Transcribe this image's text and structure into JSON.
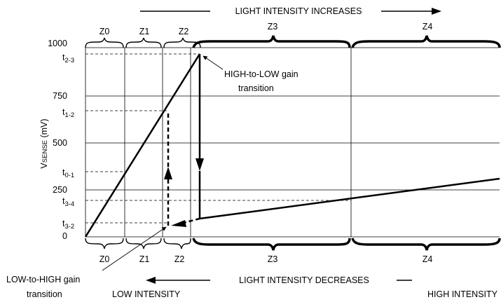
{
  "top_banner": "LIGHT INTENSITY INCREASES",
  "bottom_banner": "LIGHT INTENSITY DECREASES",
  "y_axis": {
    "main": "V",
    "sub": "SENSE",
    "unit": " (mV)"
  },
  "y_ticks": [
    "0",
    "250",
    "500",
    "750",
    "1000"
  ],
  "threshold_labels": [
    {
      "main": "t",
      "sub": "2-3"
    },
    {
      "main": "t",
      "sub": "1-2"
    },
    {
      "main": "t",
      "sub": "0-1"
    },
    {
      "main": "t",
      "sub": "3-4"
    },
    {
      "main": "t",
      "sub": "3-2"
    }
  ],
  "zones_top": [
    "Z0",
    "Z1",
    "Z2",
    "Z3",
    "Z4"
  ],
  "zones_bottom": [
    "Z0",
    "Z1",
    "Z2",
    "Z3",
    "Z4"
  ],
  "annotations": {
    "high_to_low_line1": "HIGH-to-LOW gain",
    "high_to_low_line2": "transition",
    "low_to_high_line1": "LOW-to-HIGH gain",
    "low_to_high_line2": "transition"
  },
  "low_intensity": "LOW  INTENSITY",
  "high_intensity": "HIGH INTENSITY"
}
